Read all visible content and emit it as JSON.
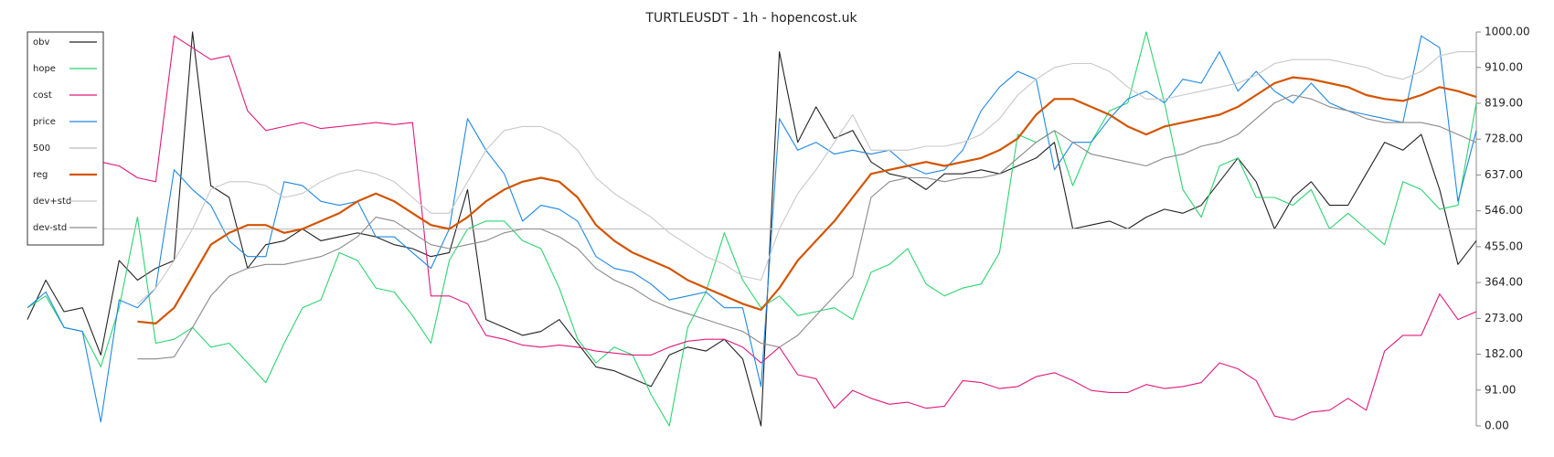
{
  "chart_data": {
    "type": "line",
    "title": "TURTLEUSDT - 1h - hopencost.uk",
    "ylim": [
      0,
      1000
    ],
    "yticks": [
      {
        "value": 0,
        "label": "0.00"
      },
      {
        "value": 91,
        "label": "91.00"
      },
      {
        "value": 182,
        "label": "182.00"
      },
      {
        "value": 273,
        "label": "273.00"
      },
      {
        "value": 364,
        "label": "364.00"
      },
      {
        "value": 455,
        "label": "455.00"
      },
      {
        "value": 546,
        "label": "546.00"
      },
      {
        "value": 637,
        "label": "637.00"
      },
      {
        "value": 728,
        "label": "728.00"
      },
      {
        "value": 819,
        "label": "819.00"
      },
      {
        "value": 910,
        "label": "910.00"
      },
      {
        "value": 1000,
        "label": "1000.00"
      }
    ],
    "legend": "top-left",
    "series": [
      {
        "name": "obv",
        "color": "#222222",
        "values": [
          270,
          370,
          290,
          300,
          180,
          420,
          370,
          400,
          420,
          1000,
          610,
          580,
          400,
          460,
          470,
          500,
          470,
          480,
          490,
          480,
          460,
          450,
          430,
          440,
          600,
          270,
          250,
          230,
          240,
          270,
          210,
          150,
          140,
          120,
          100,
          180,
          200,
          190,
          220,
          170,
          0,
          950,
          720,
          810,
          730,
          750,
          670,
          640,
          630,
          600,
          640,
          640,
          650,
          640,
          660,
          680,
          720,
          500,
          510,
          520,
          500,
          530,
          550,
          540,
          560,
          620,
          680,
          620,
          500,
          580,
          620,
          560,
          560,
          640,
          720,
          700,
          740,
          600,
          410,
          470
        ]
      },
      {
        "name": "hope",
        "color": "#2bd46f",
        "values": [
          300,
          330,
          250,
          240,
          150,
          300,
          530,
          210,
          220,
          250,
          200,
          210,
          160,
          110,
          210,
          300,
          320,
          440,
          420,
          350,
          340,
          280,
          210,
          420,
          500,
          520,
          520,
          470,
          450,
          350,
          220,
          160,
          200,
          180,
          80,
          0,
          250,
          340,
          490,
          370,
          300,
          330,
          280,
          290,
          300,
          270,
          390,
          410,
          450,
          360,
          330,
          350,
          360,
          440,
          740,
          720,
          750,
          610,
          720,
          800,
          820,
          1000,
          820,
          600,
          530,
          660,
          680,
          580,
          580,
          560,
          600,
          500,
          540,
          500,
          460,
          620,
          600,
          550,
          560,
          820
        ]
      },
      {
        "name": "cost",
        "color": "#e0197d",
        "values": [
          null,
          null,
          null,
          null,
          670,
          660,
          630,
          620,
          990,
          960,
          930,
          940,
          800,
          750,
          760,
          770,
          755,
          760,
          765,
          770,
          765,
          770,
          330,
          330,
          310,
          230,
          220,
          205,
          200,
          205,
          200,
          190,
          185,
          180,
          180,
          200,
          215,
          220,
          220,
          200,
          160,
          200,
          130,
          120,
          45,
          90,
          70,
          55,
          60,
          45,
          50,
          115,
          110,
          95,
          100,
          125,
          135,
          115,
          90,
          85,
          85,
          105,
          95,
          100,
          110,
          160,
          145,
          115,
          25,
          15,
          35,
          40,
          70,
          40,
          190,
          230,
          230,
          335,
          270,
          290
        ]
      },
      {
        "name": "price",
        "color": "#1e88e5",
        "values": [
          300,
          340,
          250,
          240,
          10,
          320,
          300,
          350,
          650,
          600,
          560,
          470,
          430,
          430,
          620,
          610,
          570,
          560,
          570,
          480,
          480,
          440,
          400,
          500,
          780,
          700,
          640,
          520,
          560,
          550,
          520,
          430,
          400,
          390,
          360,
          320,
          330,
          340,
          300,
          300,
          100,
          780,
          700,
          720,
          690,
          700,
          690,
          700,
          660,
          640,
          650,
          700,
          800,
          860,
          900,
          880,
          650,
          720,
          720,
          780,
          830,
          850,
          820,
          880,
          870,
          950,
          850,
          900,
          850,
          820,
          870,
          820,
          800,
          790,
          780,
          770,
          990,
          960,
          570,
          750
        ]
      },
      {
        "name": "500",
        "color": "#bbbbbb",
        "values": [
          500,
          500,
          500,
          500,
          500,
          500,
          500,
          500,
          500,
          500,
          500,
          500,
          500,
          500,
          500,
          500,
          500,
          500,
          500,
          500,
          500,
          500,
          500,
          500,
          500,
          500,
          500,
          500,
          500,
          500,
          500,
          500,
          500,
          500,
          500,
          500,
          500,
          500,
          500,
          500,
          500,
          500,
          500,
          500,
          500,
          500,
          500,
          500,
          500,
          500,
          500,
          500,
          500,
          500,
          500,
          500,
          500,
          500,
          500,
          500,
          500,
          500,
          500,
          500,
          500,
          500,
          500,
          500,
          500,
          500,
          500,
          500,
          500,
          500,
          500,
          500,
          500,
          500,
          500,
          500
        ]
      },
      {
        "name": "reg",
        "color": "#d35400",
        "values": [
          null,
          null,
          null,
          null,
          null,
          null,
          265,
          260,
          300,
          380,
          460,
          490,
          510,
          510,
          490,
          500,
          520,
          540,
          570,
          590,
          570,
          540,
          510,
          500,
          530,
          570,
          600,
          620,
          630,
          620,
          580,
          510,
          470,
          440,
          420,
          400,
          370,
          350,
          330,
          310,
          295,
          350,
          420,
          470,
          520,
          580,
          640,
          650,
          660,
          670,
          660,
          670,
          680,
          700,
          730,
          790,
          830,
          830,
          810,
          790,
          760,
          740,
          760,
          770,
          780,
          790,
          810,
          840,
          870,
          885,
          880,
          870,
          860,
          840,
          830,
          825,
          840,
          860,
          850,
          835
        ]
      },
      {
        "name": "dev+std",
        "color": "#c8c8c8",
        "values": [
          null,
          null,
          null,
          null,
          null,
          null,
          310,
          350,
          420,
          500,
          600,
          620,
          620,
          610,
          580,
          590,
          620,
          640,
          650,
          640,
          620,
          580,
          540,
          540,
          620,
          700,
          750,
          760,
          760,
          740,
          700,
          630,
          590,
          560,
          530,
          490,
          460,
          430,
          410,
          380,
          370,
          500,
          590,
          650,
          720,
          790,
          700,
          700,
          700,
          710,
          710,
          720,
          740,
          780,
          840,
          880,
          910,
          920,
          920,
          900,
          860,
          830,
          830,
          840,
          850,
          860,
          870,
          890,
          920,
          930,
          930,
          930,
          920,
          910,
          890,
          880,
          900,
          940,
          950,
          950
        ]
      },
      {
        "name": "dev-std",
        "color": "#8a8a8a",
        "values": [
          null,
          null,
          null,
          null,
          null,
          null,
          170,
          170,
          175,
          250,
          330,
          380,
          400,
          410,
          410,
          420,
          430,
          450,
          480,
          530,
          520,
          490,
          460,
          450,
          460,
          470,
          490,
          500,
          500,
          480,
          450,
          400,
          370,
          350,
          320,
          300,
          285,
          270,
          255,
          240,
          210,
          200,
          230,
          280,
          330,
          380,
          580,
          620,
          630,
          630,
          620,
          630,
          630,
          640,
          680,
          720,
          750,
          720,
          690,
          680,
          670,
          660,
          680,
          690,
          710,
          720,
          740,
          780,
          820,
          840,
          830,
          810,
          800,
          780,
          770,
          770,
          770,
          760,
          740,
          720
        ]
      }
    ]
  }
}
